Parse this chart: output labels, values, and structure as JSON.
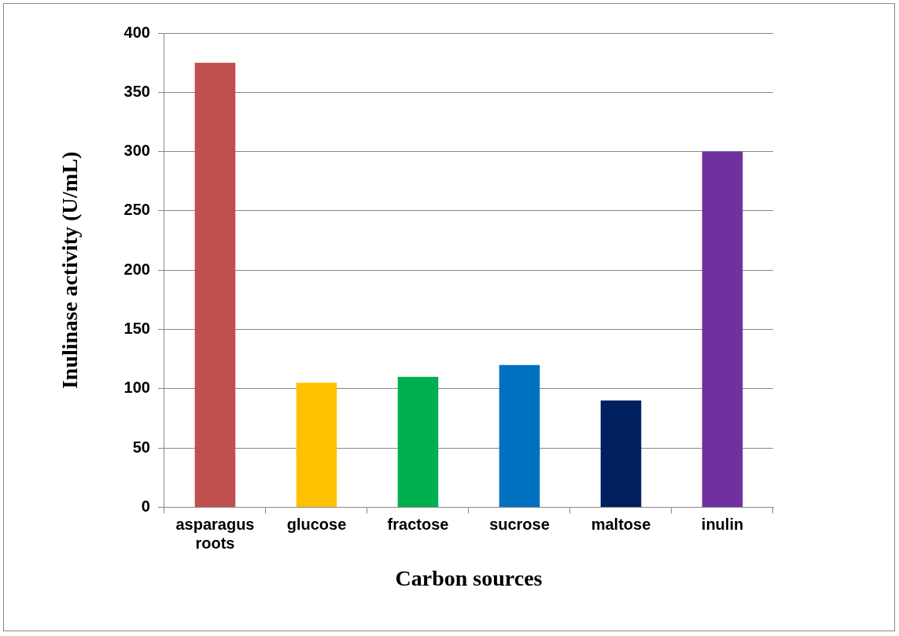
{
  "chart_data": {
    "type": "bar",
    "xlabel": "Carbon sources",
    "ylabel": "Inulinase activity (U/mL)",
    "categories": [
      "asparagus roots",
      "glucose",
      "fractose",
      "sucrose",
      "maltose",
      "inulin"
    ],
    "values": [
      375,
      105,
      110,
      120,
      90,
      300
    ],
    "colors": [
      "#c0504d",
      "#ffc000",
      "#00b050",
      "#0070c0",
      "#002060",
      "#7030a0"
    ],
    "ylim": [
      0,
      400
    ],
    "yticks": [
      0,
      50,
      100,
      150,
      200,
      250,
      300,
      350,
      400
    ],
    "grid": "y"
  }
}
